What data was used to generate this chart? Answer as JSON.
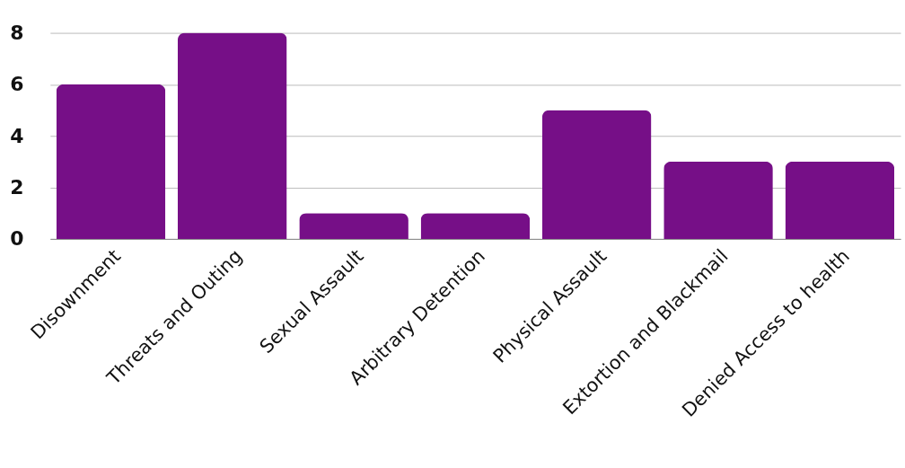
{
  "chart_data": {
    "type": "bar",
    "categories": [
      "Disownment",
      "Threats and Outing",
      "Sexual Assault",
      "Arbitrary Detention",
      "Physical Assault",
      "Extortion and Blackmail",
      "Denied Access to health"
    ],
    "values": [
      6,
      8,
      1,
      1,
      5,
      3,
      3
    ],
    "color": "#760f87",
    "ylim": [
      0,
      8
    ],
    "yticks": [
      0,
      2,
      4,
      6,
      8
    ],
    "grid": "y"
  }
}
